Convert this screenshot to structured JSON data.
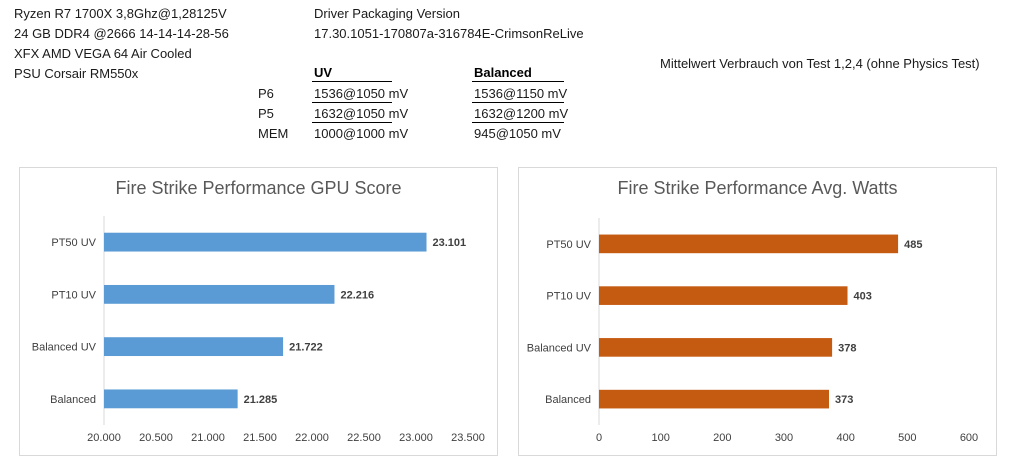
{
  "specs": {
    "cpu": "Ryzen R7 1700X 3,8Ghz@1,28125V",
    "ram": "24 GB DDR4 @2666 14-14-14-28-56",
    "gpu": "XFX AMD VEGA 64 Air Cooled",
    "psu": "PSU Corsair RM550x"
  },
  "driver": {
    "label": "Driver Packaging Version",
    "version": "17.30.1051-170807a-316784E-CrimsonReLive"
  },
  "note": "Mittelwert Verbrauch von Test 1,2,4 (ohne Physics Test)",
  "table": {
    "headers": [
      "",
      "UV",
      "Balanced"
    ],
    "rows": [
      [
        "P6",
        "1536@1050 mV",
        "1536@1150 mV"
      ],
      [
        "P5",
        "1632@1050 mV",
        "1632@1200 mV"
      ],
      [
        "MEM",
        "1000@1000 mV",
        "945@1050 mV"
      ]
    ]
  },
  "chart_data": [
    {
      "type": "bar",
      "orientation": "horizontal",
      "title": "Fire Strike Performance GPU Score",
      "categories": [
        "PT50 UV",
        "PT10 UV",
        "Balanced UV",
        "Balanced"
      ],
      "values": [
        23101,
        22216,
        21722,
        21285
      ],
      "value_labels": [
        "23.101",
        "22.216",
        "21.722",
        "21.285"
      ],
      "xlim": [
        20000,
        23500
      ],
      "ticks": [
        20000,
        20500,
        21000,
        21500,
        22000,
        22500,
        23000,
        23500
      ],
      "tick_labels": [
        "20.000",
        "20.500",
        "21.000",
        "21.500",
        "22.000",
        "22.500",
        "23.000",
        "23.500"
      ],
      "color": "#5b9bd5",
      "grid": false
    },
    {
      "type": "bar",
      "orientation": "horizontal",
      "title": "Fire Strike Performance Avg.  Watts",
      "categories": [
        "PT50 UV",
        "PT10 UV",
        "Balanced UV",
        "Balanced"
      ],
      "values": [
        485,
        403,
        378,
        373
      ],
      "value_labels": [
        "485",
        "403",
        "378",
        "373"
      ],
      "xlim": [
        0,
        600
      ],
      "ticks": [
        0,
        100,
        200,
        300,
        400,
        500,
        600
      ],
      "tick_labels": [
        "0",
        "100",
        "200",
        "300",
        "400",
        "500",
        "600"
      ],
      "color": "#c55a11",
      "grid": false
    }
  ]
}
